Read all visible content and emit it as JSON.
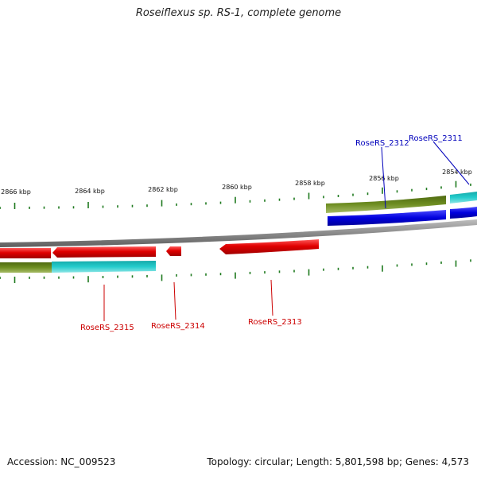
{
  "title": "Roseiflexus sp. RS-1, complete genome",
  "footer": {
    "accession": "Accession: NC_009523",
    "summary": "Topology: circular; Length: 5,801,598 bp; Genes: 4,573"
  },
  "scale": {
    "tick_labels": [
      "2866 kbp",
      "2864 kbp",
      "2862 kbp",
      "2860 kbp",
      "2858 kbp",
      "2856 kbp",
      "2854 kbp"
    ]
  },
  "genes": {
    "forward_labels": [
      "RoseRS_2312",
      "RoseRS_2311"
    ],
    "reverse_labels": [
      "RoseRS_2315",
      "RoseRS_2314",
      "RoseRS_2313"
    ]
  },
  "colors": {
    "backbone": "#8a8a8a",
    "reverse_gene": "#e00000",
    "forward_gene": "#0000dd",
    "tick": "#1e7a1e",
    "reverse_label": "#cc0000",
    "forward_label": "#0000bb",
    "olive_bar": "#6a8a1e",
    "cyan_bar": "#22c6c6"
  }
}
